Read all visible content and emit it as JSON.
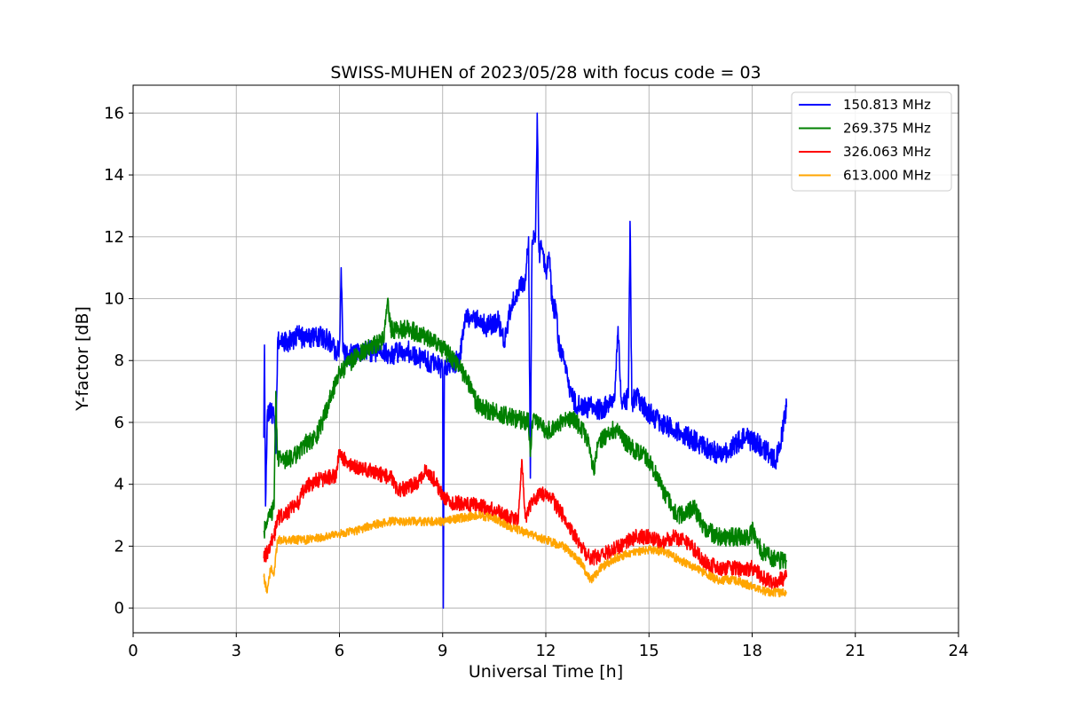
{
  "chart_data": {
    "type": "line",
    "title": "SWISS-MUHEN of 2023/05/28 with focus code = 03",
    "xlabel": "Universal Time [h]",
    "ylabel": "Y-factor [dB]",
    "xlim": [
      0,
      24
    ],
    "ylim": [
      -0.8,
      16.9
    ],
    "xticks": [
      0,
      3,
      6,
      9,
      12,
      15,
      18,
      21,
      24
    ],
    "yticks": [
      0,
      2,
      4,
      6,
      8,
      10,
      12,
      14,
      16
    ],
    "grid": true,
    "legend_position": "top-right",
    "series": [
      {
        "name": "150.813 MHz",
        "color": "#0000ff",
        "noise": 0.35,
        "x": [
          3.8,
          3.82,
          3.85,
          3.9,
          4.0,
          4.1,
          4.15,
          4.2,
          4.3,
          4.5,
          4.8,
          5.0,
          5.3,
          5.6,
          5.8,
          5.9,
          6.0,
          6.05,
          6.1,
          6.2,
          6.5,
          7.0,
          7.5,
          8.0,
          8.5,
          8.8,
          9.0,
          9.02,
          9.05,
          9.2,
          9.5,
          9.6,
          9.65,
          9.8,
          10.0,
          10.3,
          10.6,
          10.8,
          11.0,
          11.2,
          11.4,
          11.5,
          11.55,
          11.6,
          11.7,
          11.75,
          11.8,
          11.9,
          12.0,
          12.1,
          12.2,
          12.3,
          12.4,
          12.5,
          12.6,
          12.7,
          12.8,
          13.0,
          13.3,
          13.6,
          14.0,
          14.1,
          14.2,
          14.4,
          14.45,
          14.5,
          14.6,
          15.0,
          15.5,
          16.0,
          16.5,
          17.0,
          17.2,
          17.5,
          17.8,
          18.0,
          18.3,
          18.5,
          18.7,
          18.8,
          18.9,
          19.0
        ],
        "y": [
          5.5,
          8.5,
          3.3,
          6.2,
          6.3,
          6.2,
          5.0,
          8.6,
          8.6,
          8.6,
          8.8,
          8.7,
          8.8,
          8.7,
          8.5,
          8.2,
          8.5,
          11.0,
          8.3,
          8.1,
          8.3,
          8.3,
          8.2,
          8.3,
          8.0,
          7.9,
          7.7,
          0.0,
          7.8,
          7.9,
          8.0,
          9.0,
          9.5,
          9.4,
          9.3,
          9.1,
          9.3,
          8.6,
          9.8,
          10.3,
          10.6,
          12.0,
          4.2,
          11.8,
          12.0,
          16.0,
          11.5,
          11.6,
          10.8,
          11.3,
          9.7,
          9.7,
          8.2,
          8.1,
          7.6,
          7.0,
          6.7,
          6.5,
          6.5,
          6.4,
          6.7,
          9.1,
          6.6,
          6.8,
          12.5,
          6.6,
          6.9,
          6.3,
          5.9,
          5.6,
          5.3,
          5.0,
          5.0,
          5.3,
          5.5,
          5.4,
          5.2,
          5.0,
          4.8,
          5.2,
          5.8,
          6.5
        ]
      },
      {
        "name": "269.375 MHz",
        "color": "#008000",
        "noise": 0.3,
        "x": [
          3.8,
          3.9,
          4.0,
          4.1,
          4.15,
          4.2,
          4.5,
          4.8,
          5.0,
          5.3,
          5.5,
          5.8,
          6.0,
          6.3,
          6.5,
          7.0,
          7.3,
          7.4,
          7.5,
          7.7,
          8.0,
          8.5,
          9.0,
          9.5,
          9.7,
          10.0,
          10.3,
          10.6,
          10.9,
          11.2,
          11.5,
          11.55,
          11.6,
          11.8,
          12.0,
          12.3,
          12.6,
          12.9,
          13.2,
          13.4,
          13.5,
          13.8,
          14.0,
          14.3,
          14.6,
          15.0,
          15.2,
          15.5,
          15.8,
          16.0,
          16.3,
          16.6,
          17.0,
          17.3,
          17.6,
          17.9,
          18.0,
          18.3,
          18.6,
          19.0
        ],
        "y": [
          2.5,
          2.7,
          3.0,
          3.3,
          7.0,
          4.8,
          4.8,
          5.0,
          5.3,
          5.5,
          6.0,
          7.0,
          7.6,
          7.9,
          8.2,
          8.5,
          8.7,
          10.0,
          9.0,
          9.0,
          9.0,
          8.8,
          8.4,
          7.8,
          7.4,
          6.6,
          6.4,
          6.3,
          6.2,
          6.1,
          6.0,
          4.9,
          6.0,
          6.0,
          5.7,
          5.9,
          6.2,
          6.0,
          5.5,
          4.3,
          5.3,
          5.6,
          5.8,
          5.4,
          5.1,
          4.8,
          4.3,
          3.6,
          3.0,
          3.0,
          3.3,
          2.6,
          2.3,
          2.3,
          2.3,
          2.3,
          2.5,
          1.8,
          1.6,
          1.5
        ]
      },
      {
        "name": "326.063 MHz",
        "color": "#ff0000",
        "noise": 0.25,
        "x": [
          3.8,
          3.9,
          4.0,
          4.1,
          4.2,
          4.5,
          4.8,
          5.0,
          5.3,
          5.6,
          5.9,
          6.0,
          6.3,
          6.6,
          7.0,
          7.5,
          7.7,
          8.0,
          8.3,
          8.5,
          8.8,
          9.0,
          9.3,
          9.6,
          10.0,
          10.4,
          10.8,
          11.2,
          11.3,
          11.4,
          11.6,
          11.9,
          12.2,
          12.5,
          12.8,
          13.0,
          13.3,
          13.6,
          14.0,
          14.3,
          14.6,
          15.0,
          15.4,
          15.7,
          16.0,
          16.3,
          16.6,
          17.0,
          17.4,
          17.8,
          18.0,
          18.3,
          18.6,
          19.0
        ],
        "y": [
          1.6,
          1.8,
          2.1,
          2.3,
          2.9,
          3.1,
          3.4,
          3.9,
          4.1,
          4.2,
          4.3,
          5.0,
          4.6,
          4.5,
          4.4,
          4.2,
          3.8,
          3.9,
          4.1,
          4.5,
          4.1,
          3.6,
          3.4,
          3.4,
          3.3,
          3.2,
          3.0,
          2.8,
          4.8,
          2.9,
          3.5,
          3.7,
          3.5,
          3.0,
          2.4,
          2.0,
          1.6,
          1.7,
          1.9,
          2.1,
          2.3,
          2.3,
          2.1,
          2.3,
          2.2,
          1.9,
          1.5,
          1.3,
          1.3,
          1.2,
          1.3,
          1.0,
          0.8,
          1.0
        ]
      },
      {
        "name": "613.000 MHz",
        "color": "#ffa500",
        "noise": 0.14,
        "x": [
          3.8,
          3.9,
          4.0,
          4.1,
          4.2,
          4.5,
          5.0,
          5.5,
          6.0,
          6.5,
          7.0,
          7.5,
          8.0,
          8.5,
          9.0,
          9.5,
          10.0,
          10.5,
          11.0,
          11.5,
          12.0,
          12.5,
          13.0,
          13.3,
          13.6,
          14.0,
          14.5,
          15.0,
          15.5,
          16.0,
          16.5,
          17.0,
          17.5,
          18.0,
          18.5,
          19.0
        ],
        "y": [
          1.0,
          0.5,
          1.3,
          1.1,
          2.2,
          2.2,
          2.2,
          2.3,
          2.4,
          2.5,
          2.7,
          2.8,
          2.8,
          2.8,
          2.8,
          2.9,
          3.0,
          2.9,
          2.6,
          2.4,
          2.2,
          2.0,
          1.5,
          0.9,
          1.3,
          1.6,
          1.8,
          1.9,
          1.8,
          1.5,
          1.2,
          0.9,
          0.9,
          0.7,
          0.5,
          0.5
        ]
      }
    ]
  }
}
